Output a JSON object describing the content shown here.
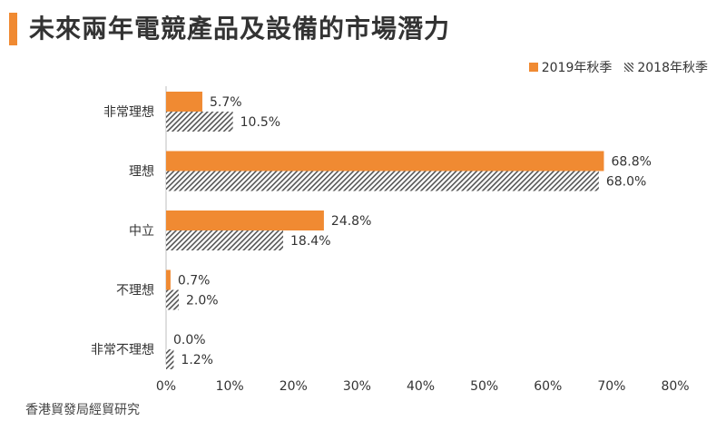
{
  "title": "未來兩年電競產品及設備的市場潛力",
  "source": "香港貿發局經貿研究",
  "colors": {
    "accent": "#f08a32",
    "hatch": "#555555"
  },
  "chart_data": {
    "type": "bar",
    "orientation": "horizontal",
    "title": "未來兩年電競產品及設備的市場潛力",
    "categories": [
      "非常理想",
      "理想",
      "中立",
      "不理想",
      "非常不理想"
    ],
    "series": [
      {
        "name": "2019年秋季",
        "values": [
          5.7,
          68.8,
          24.8,
          0.7,
          0.0
        ],
        "labels": [
          "5.7%",
          "68.8%",
          "24.8%",
          "0.7%",
          "0.0%"
        ],
        "style": "solid",
        "color": "#f08a32"
      },
      {
        "name": "2018年秋季",
        "values": [
          10.5,
          68.0,
          18.4,
          2.0,
          1.2
        ],
        "labels": [
          "10.5%",
          "68.0%",
          "18.4%",
          "2.0%",
          "1.2%"
        ],
        "style": "hatched",
        "color": "#555555"
      }
    ],
    "xlim": [
      0,
      80
    ],
    "xticks": [
      0,
      10,
      20,
      30,
      40,
      50,
      60,
      70,
      80
    ],
    "xtick_labels": [
      "0%",
      "10%",
      "20%",
      "30%",
      "40%",
      "50%",
      "60%",
      "70%",
      "80%"
    ],
    "legend_position": "top-right",
    "grid": false
  }
}
